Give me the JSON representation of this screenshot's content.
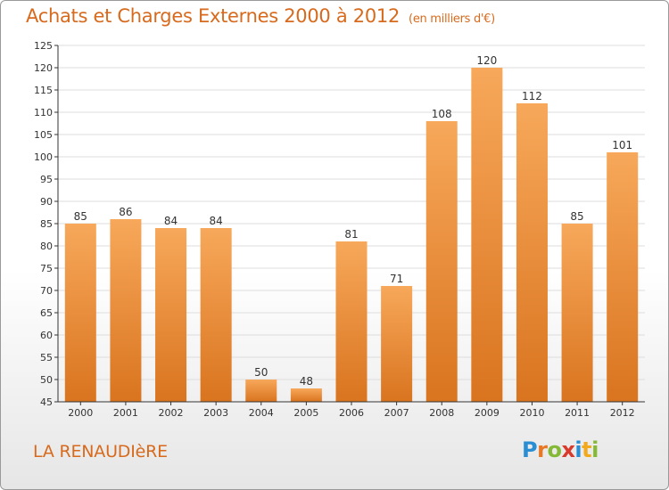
{
  "header": {
    "title": "Achats et Charges Externes 2000 à 2012",
    "units": "(en milliers d'€)"
  },
  "footer": {
    "commune": "LA RENAUDIèRE",
    "logo": {
      "letters": [
        "P",
        "r",
        "o",
        "x",
        "i",
        "t",
        "i"
      ],
      "colors": [
        "#2a8ed4",
        "#e77826",
        "#84b935",
        "#d83a2c",
        "#2a8ed4",
        "#f2a91c",
        "#84b935"
      ]
    }
  },
  "colors": {
    "bar_top": "#f7a85a",
    "bar_bottom": "#d9741f",
    "text": "#d76a1d",
    "axis": "#333333",
    "grid": "#dddddd"
  },
  "chart_data": {
    "type": "bar",
    "title": "Achats et Charges Externes 2000 à 2012",
    "subtitle": "(en milliers d'€)",
    "categories": [
      "2000",
      "2001",
      "2002",
      "2003",
      "2004",
      "2005",
      "2006",
      "2007",
      "2008",
      "2009",
      "2010",
      "2011",
      "2012"
    ],
    "values": [
      85,
      86,
      84,
      84,
      50,
      48,
      81,
      71,
      108,
      120,
      112,
      85,
      101
    ],
    "ylim": [
      45,
      125
    ],
    "yticks": [
      45,
      50,
      55,
      60,
      65,
      70,
      75,
      80,
      85,
      90,
      95,
      100,
      105,
      110,
      115,
      120,
      125
    ],
    "grid": true
  }
}
